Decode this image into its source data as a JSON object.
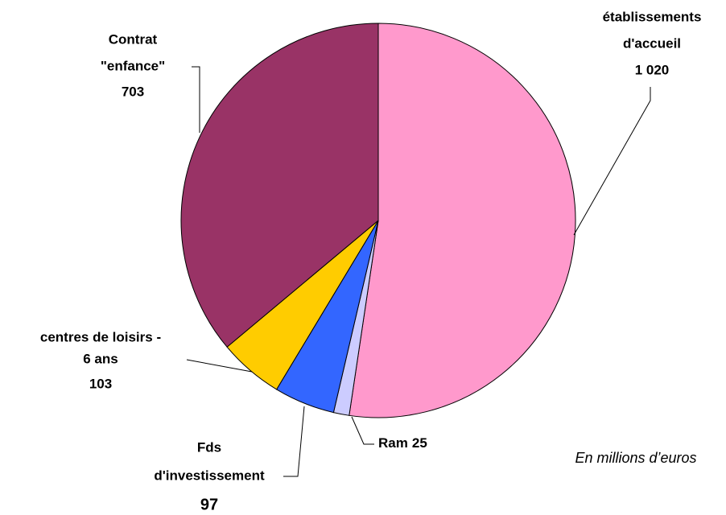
{
  "chart_data": {
    "type": "pie",
    "categories": [
      [
        "établissements",
        "d'accueil"
      ],
      [
        "Ram"
      ],
      [
        "Fds",
        "d'investissement"
      ],
      [
        "centres de loisirs -",
        "6 ans"
      ],
      [
        "Contrat",
        "\"enfance\""
      ]
    ],
    "values": [
      1020,
      25,
      97,
      103,
      703
    ],
    "value_labels": [
      "1 020",
      "25",
      "97",
      "103",
      "703"
    ],
    "colors": [
      "#ff99cc",
      "#ccccff",
      "#3366ff",
      "#ffcc00",
      "#993366"
    ],
    "annotation": "En millions d’euros"
  }
}
